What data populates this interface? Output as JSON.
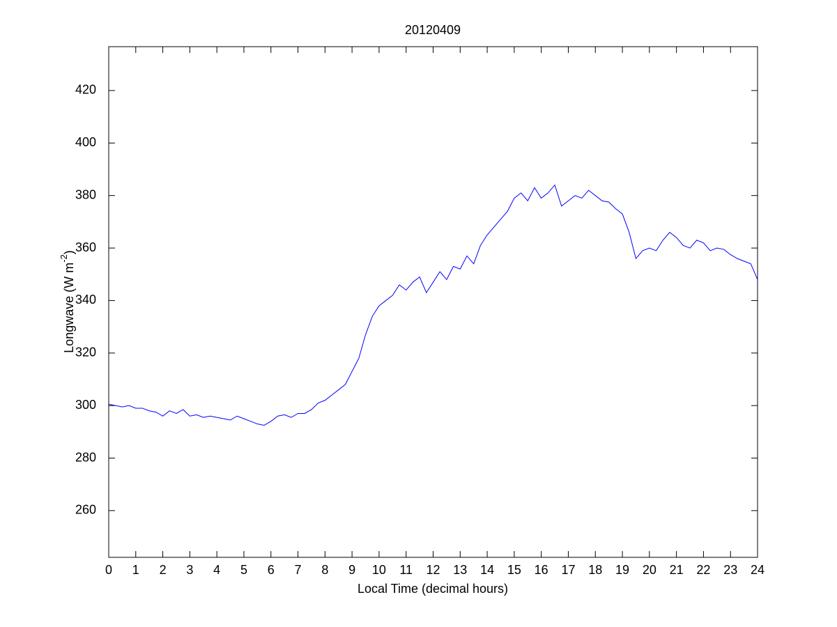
{
  "chart_data": {
    "type": "line",
    "title": "20120409",
    "xlabel": "Local Time (decimal hours)",
    "ylabel_parts": [
      "Longwave (W m",
      "-2",
      ")"
    ],
    "xlim": [
      0,
      24
    ],
    "ylim": [
      242.2,
      436.7
    ],
    "xticks": [
      0,
      1,
      2,
      3,
      4,
      5,
      6,
      7,
      8,
      9,
      10,
      11,
      12,
      13,
      14,
      15,
      16,
      17,
      18,
      19,
      20,
      21,
      22,
      23,
      24
    ],
    "yticks": [
      260,
      280,
      300,
      320,
      340,
      360,
      380,
      400,
      420
    ],
    "grid": false,
    "x": [
      0,
      0.25,
      0.5,
      0.75,
      1,
      1.25,
      1.5,
      1.75,
      2,
      2.25,
      2.5,
      2.75,
      3,
      3.25,
      3.5,
      3.75,
      4,
      4.25,
      4.5,
      4.75,
      5,
      5.25,
      5.5,
      5.75,
      6,
      6.25,
      6.5,
      6.75,
      7,
      7.25,
      7.5,
      7.75,
      8,
      8.25,
      8.5,
      8.75,
      9,
      9.25,
      9.5,
      9.75,
      10,
      10.25,
      10.5,
      10.75,
      11,
      11.25,
      11.5,
      11.75,
      12,
      12.25,
      12.5,
      12.75,
      13,
      13.25,
      13.5,
      13.75,
      14,
      14.25,
      14.5,
      14.75,
      15,
      15.25,
      15.5,
      15.75,
      16,
      16.25,
      16.5,
      16.75,
      17,
      17.25,
      17.5,
      17.75,
      18,
      18.25,
      18.5,
      18.75,
      19,
      19.25,
      19.5,
      19.75,
      20,
      20.25,
      20.5,
      20.75,
      21,
      21.25,
      21.5,
      21.75,
      22,
      22.25,
      22.5,
      22.75,
      23,
      23.25,
      23.5,
      23.75,
      24
    ],
    "series": [
      {
        "color": "#0000ff",
        "values": [
          300.5,
          300,
          299.5,
          300,
          299,
          299,
          298,
          297.5,
          296,
          298,
          297,
          298.5,
          296,
          296.5,
          295.5,
          296,
          295.5,
          295,
          294.5,
          296,
          295,
          294,
          293,
          292.5,
          294,
          296,
          296.5,
          295.5,
          297,
          297,
          298.5,
          301,
          302,
          304,
          306,
          308,
          313,
          318,
          327,
          334,
          338,
          340,
          342,
          346,
          344,
          347,
          349,
          343,
          347,
          351,
          348,
          353,
          352,
          357,
          354,
          361,
          365,
          368,
          371,
          374,
          379,
          381,
          378,
          383,
          379,
          381,
          384,
          376,
          378,
          380,
          379,
          382,
          380,
          378,
          377.5,
          375,
          373,
          366,
          356,
          359,
          360,
          359,
          363,
          366,
          364,
          361,
          360,
          363,
          362,
          359,
          360,
          359.5,
          357.5,
          356,
          355,
          354,
          348
        ]
      }
    ]
  }
}
